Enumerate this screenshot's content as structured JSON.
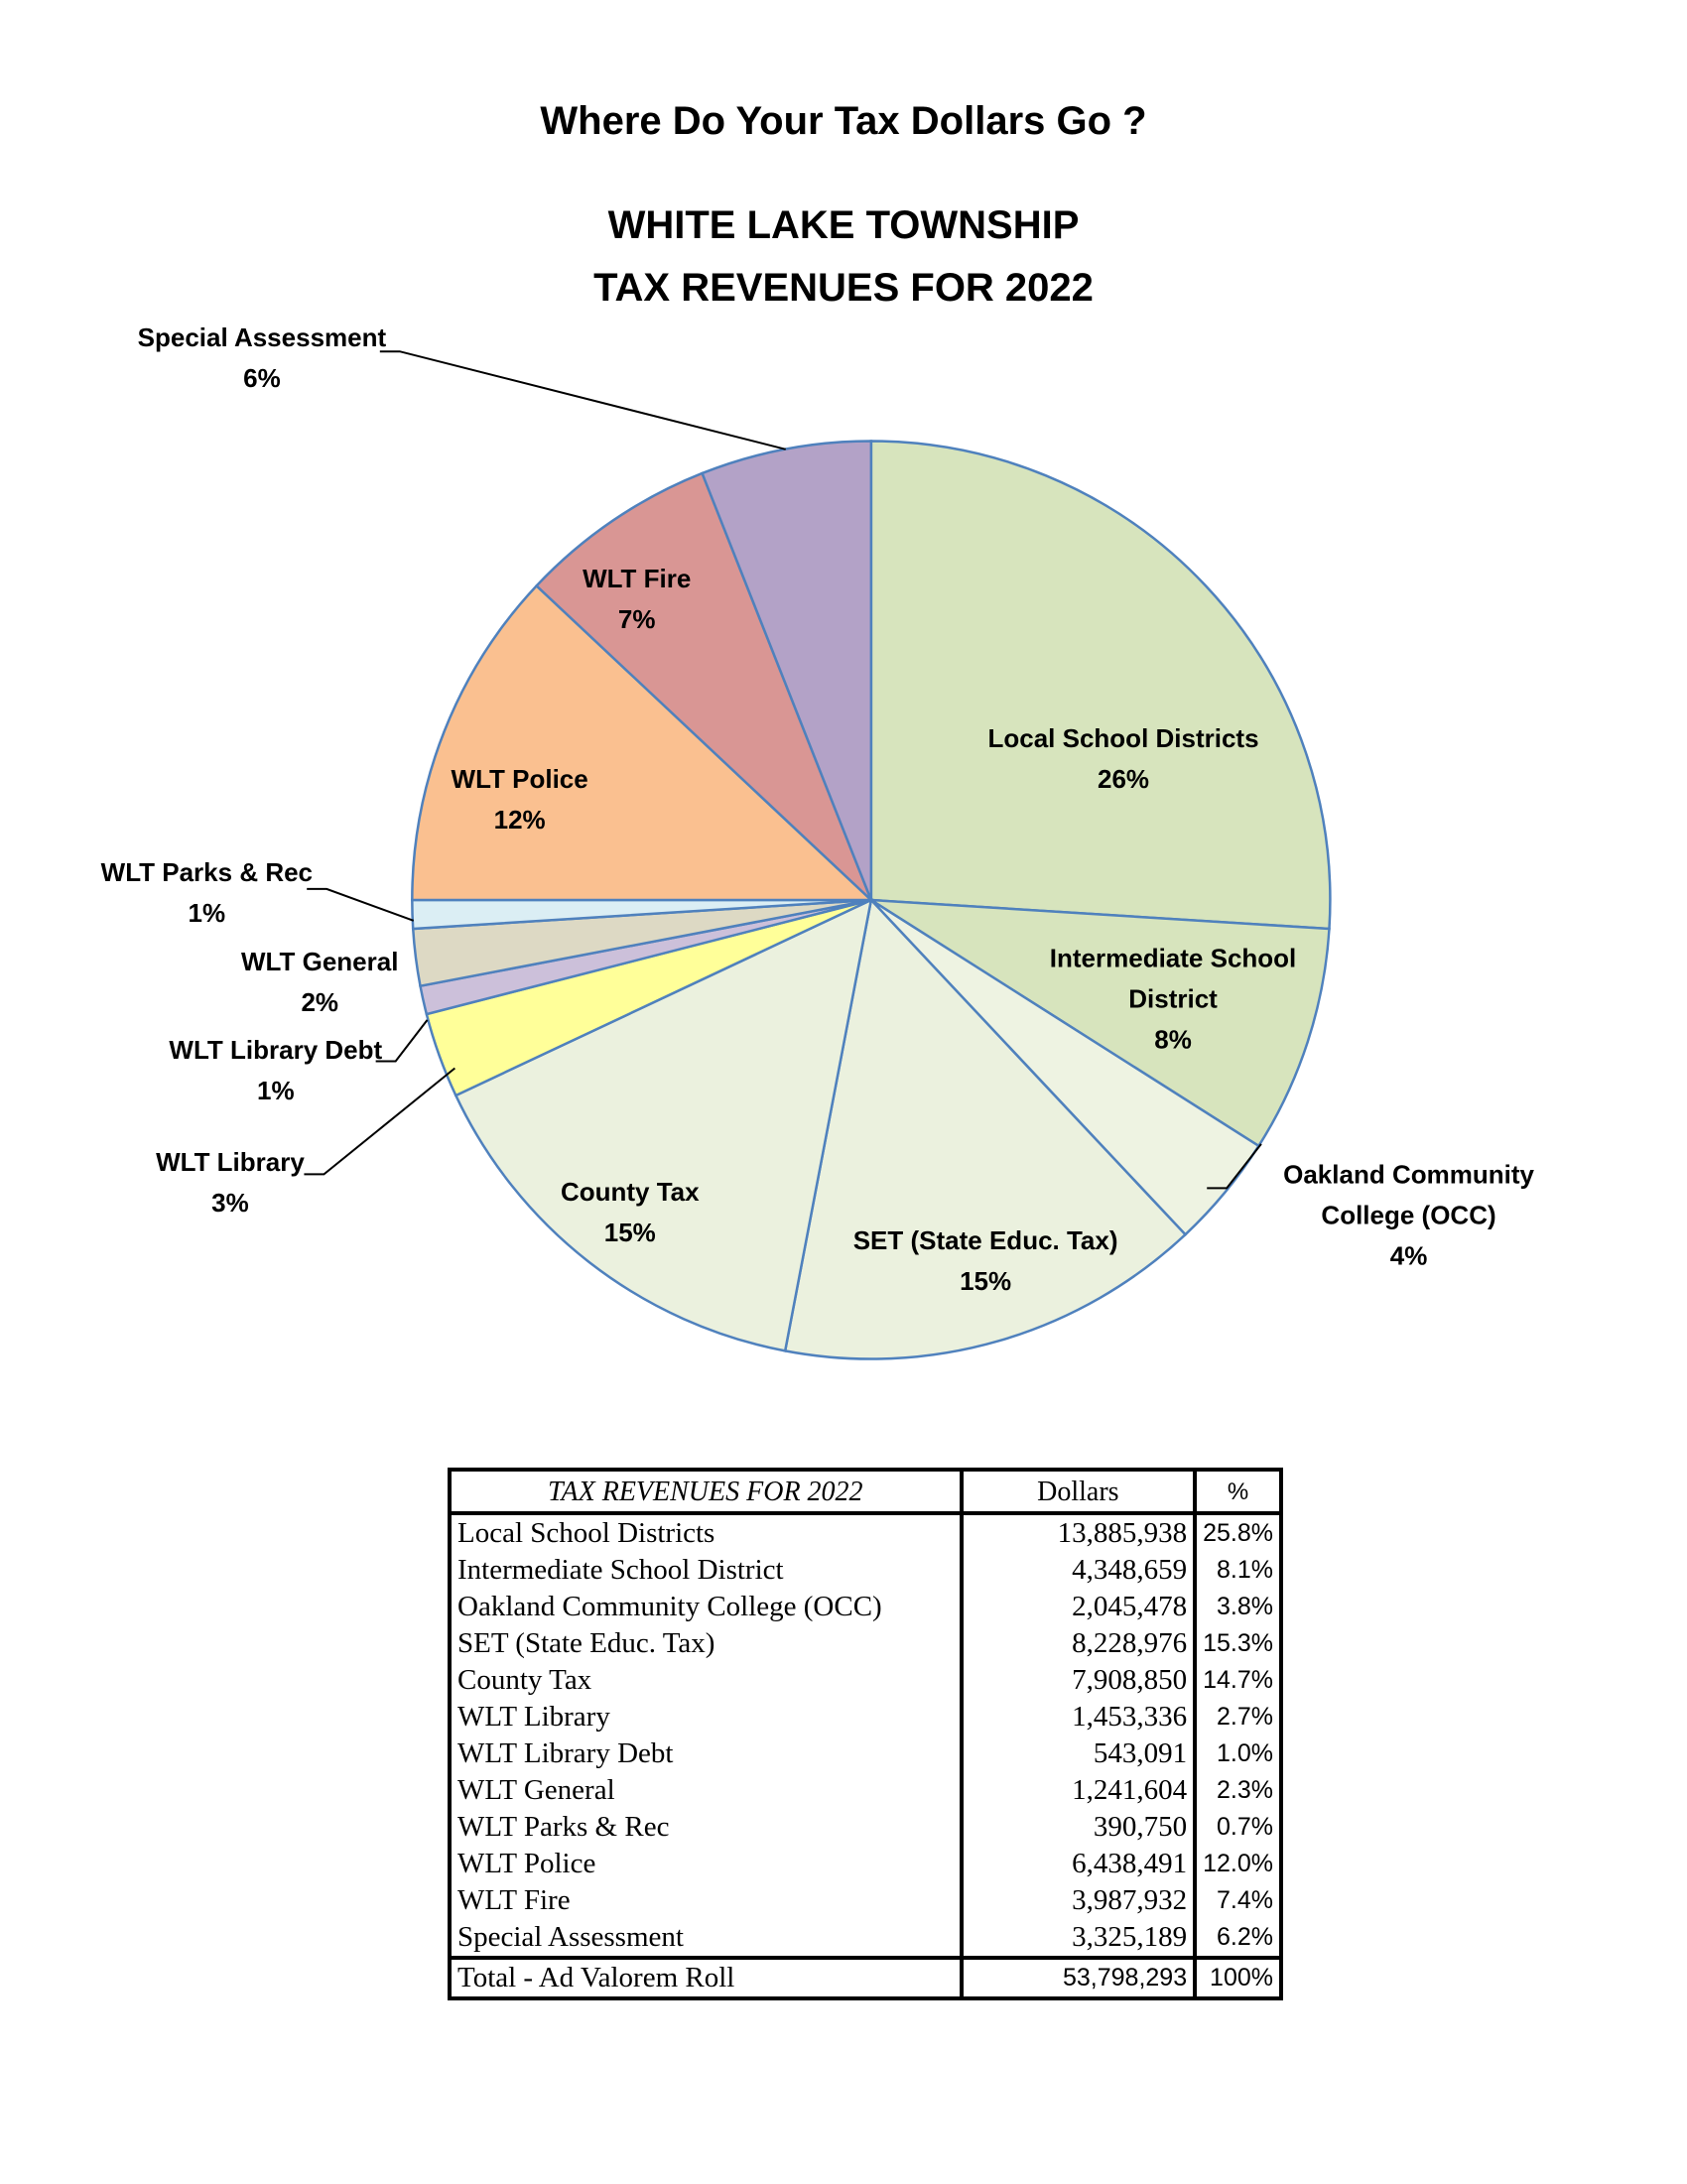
{
  "chart_data": {
    "type": "pie",
    "title": "Where Do Your Tax Dollars Go ?",
    "subtitle": [
      "WHITE LAKE TOWNSHIP",
      "TAX REVENUES FOR 2022"
    ],
    "categories": [
      "Local School Districts",
      "Intermediate School District",
      "Oakland Community College (OCC)",
      "SET (State Educ. Tax)",
      "County Tax",
      "WLT Library",
      "WLT Library Debt",
      "WLT General",
      "WLT Parks & Rec",
      "WLT Police",
      "WLT Fire",
      "Special Assessment"
    ],
    "values": [
      26,
      8,
      4,
      15,
      15,
      3,
      1,
      2,
      1,
      12,
      7,
      6
    ],
    "value_labels": [
      "26%",
      "8%",
      "4%",
      "15%",
      "15%",
      "3%",
      "1%",
      "2%",
      "1%",
      "12%",
      "7%",
      "6%"
    ],
    "colors": [
      "#d7e4bd",
      "#d7e4bd",
      "#eef3e2",
      "#ebf1de",
      "#ebf1de",
      "#ffff99",
      "#ccc0da",
      "#ddd9c4",
      "#dbeef4",
      "#fac090",
      "#d99694",
      "#b3a2c7"
    ]
  },
  "table": {
    "title": "TAX REVENUES FOR 2022",
    "headers": [
      "Dollars",
      "%"
    ],
    "rows": [
      [
        "Local School Districts",
        "13,885,938",
        "25.8%"
      ],
      [
        "Intermediate School District",
        "4,348,659",
        "8.1%"
      ],
      [
        "Oakland Community College (OCC)",
        "2,045,478",
        "3.8%"
      ],
      [
        "SET (State Educ. Tax)",
        "8,228,976",
        "15.3%"
      ],
      [
        "County Tax",
        "7,908,850",
        "14.7%"
      ],
      [
        "WLT Library",
        "1,453,336",
        "2.7%"
      ],
      [
        "WLT Library Debt",
        "543,091",
        "1.0%"
      ],
      [
        "WLT General",
        "1,241,604",
        "2.3%"
      ],
      [
        "WLT Parks & Rec",
        "390,750",
        "0.7%"
      ],
      [
        "WLT Police",
        "6,438,491",
        "12.0%"
      ],
      [
        "WLT Fire",
        "3,987,932",
        "7.4%"
      ],
      [
        "Special Assessment",
        "3,325,189",
        "6.2%"
      ]
    ],
    "total": [
      "Total - Ad Valorem Roll",
      "53,798,293",
      "100%"
    ]
  }
}
